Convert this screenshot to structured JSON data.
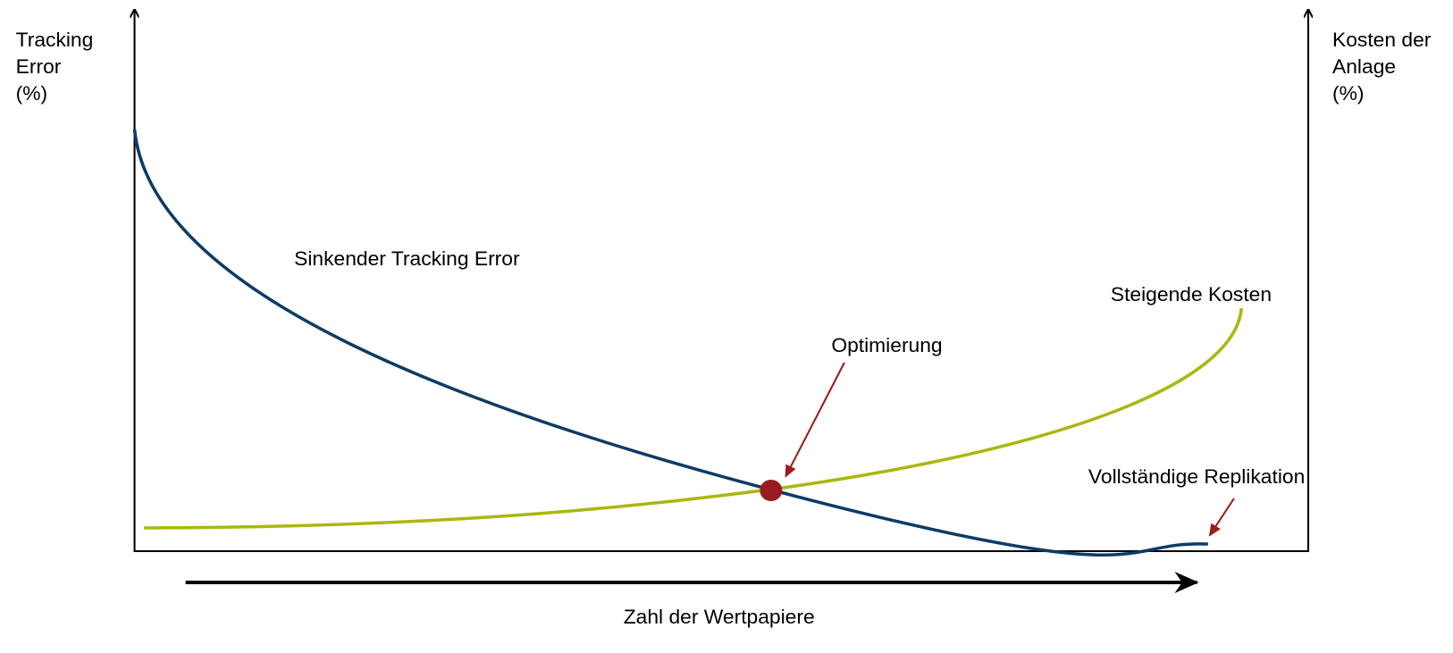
{
  "left_axis_label": [
    "Tracking",
    "Error",
    "(%)"
  ],
  "right_axis_label": [
    "Kosten der",
    "Anlage",
    "(%)"
  ],
  "curve_labels": {
    "tracking_error": "Sinkender Tracking Error",
    "costs": "Steigende Kosten"
  },
  "annotations": {
    "optimum": "Optimierung",
    "full_replication": "Vollständige Replikation"
  },
  "x_axis_label": "Zahl der Wertpapiere"
}
